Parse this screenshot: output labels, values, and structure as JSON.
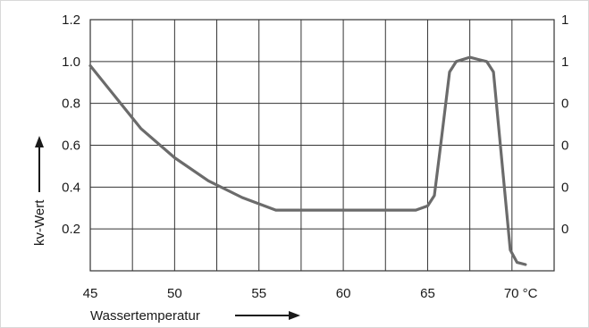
{
  "chart_data": {
    "type": "line",
    "title": "",
    "xlabel": "Wassertemperatur",
    "ylabel": "kv-Wert",
    "xlim": [
      45,
      72.5
    ],
    "ylim": [
      0,
      1.2
    ],
    "x_ticks": [
      45,
      50,
      55,
      60,
      65,
      70
    ],
    "x_tick_labels": [
      "45",
      "50",
      "55",
      "60",
      "65",
      "70 °C"
    ],
    "y_ticks_left": [
      0.2,
      0.4,
      0.6,
      0.8,
      1.0,
      1.2
    ],
    "y_tick_labels_left": [
      "0.2",
      "0.4",
      "0.6",
      "0.8",
      "1.0",
      "1.2"
    ],
    "y_tick_labels_right": [
      "0",
      "0",
      "0",
      "0",
      "1",
      "1"
    ],
    "grid": true,
    "series": [
      {
        "x": [
          45,
          46.5,
          48,
          50,
          52,
          54,
          56,
          58,
          60,
          62,
          64.3,
          65,
          65.4,
          65.8,
          66.3,
          66.7,
          67.5,
          68,
          68.5,
          68.9,
          69.9,
          70.3,
          70.8
        ],
        "y": [
          0.98,
          0.83,
          0.68,
          0.54,
          0.43,
          0.35,
          0.29,
          0.29,
          0.29,
          0.29,
          0.29,
          0.31,
          0.36,
          0.62,
          0.95,
          1.0,
          1.02,
          1.01,
          1.0,
          0.95,
          0.1,
          0.04,
          0.03
        ]
      }
    ],
    "line_color": "#6b6b6b",
    "grid_color": "#333333"
  }
}
